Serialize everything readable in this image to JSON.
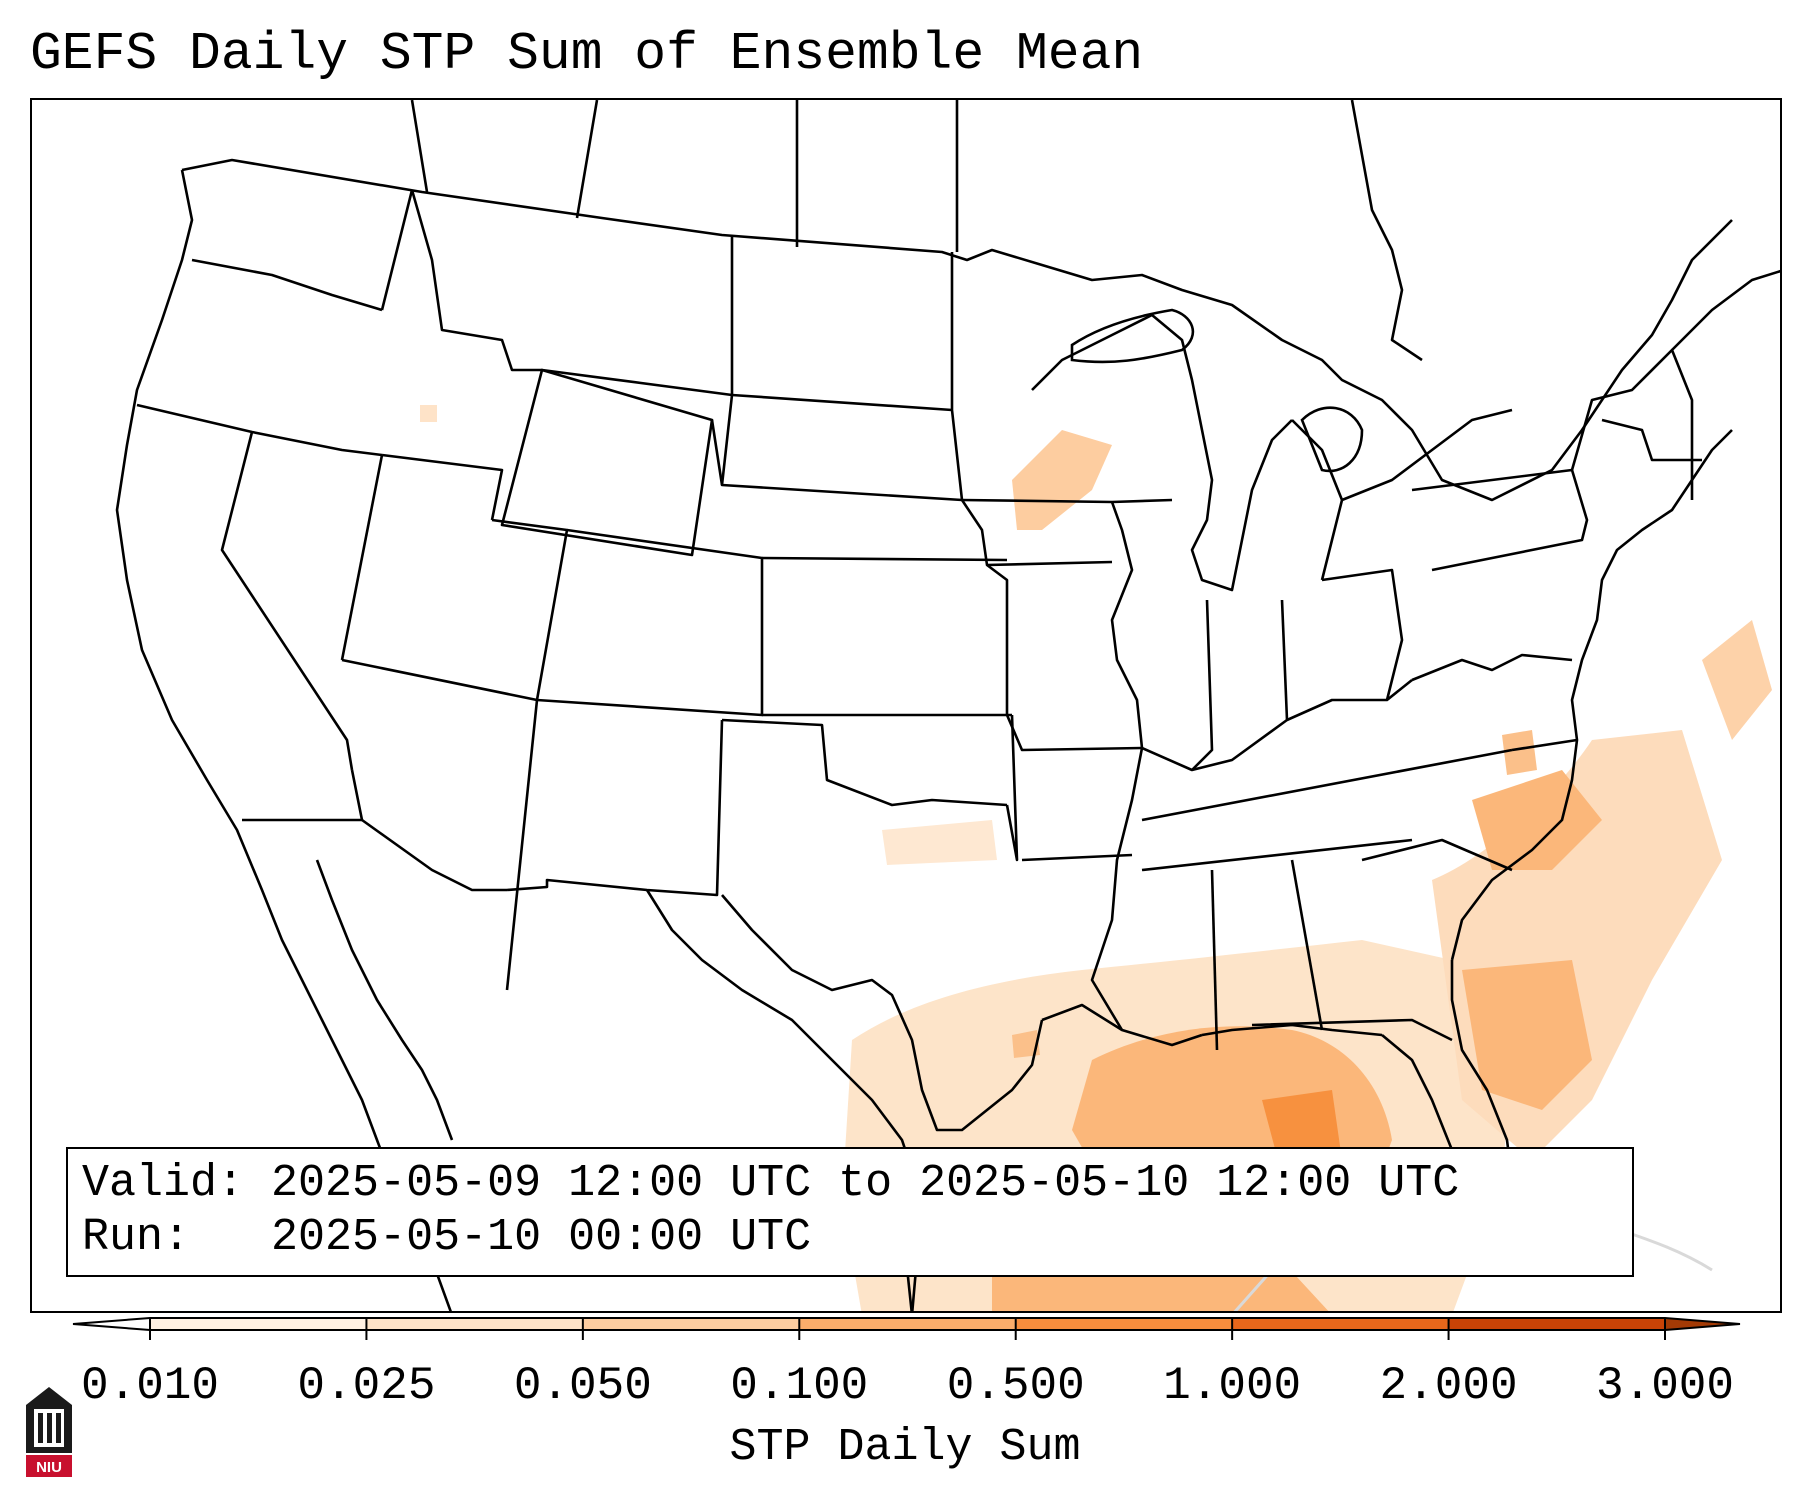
{
  "title": "GEFS Daily STP Sum of Ensemble Mean",
  "info": {
    "valid_prefix": "Valid:",
    "valid_text": "2025-05-09 12:00 UTC to 2025-05-10 12:00 UTC",
    "run_prefix": "Run:",
    "run_text": "2025-05-10 00:00 UTC"
  },
  "colorbar": {
    "label": "STP Daily Sum",
    "ticks": [
      "0.010",
      "0.025",
      "0.050",
      "0.100",
      "0.500",
      "1.000",
      "2.000",
      "3.000"
    ],
    "colors": [
      "#fff1e3",
      "#fee3c8",
      "#fdcda0",
      "#fbad6b",
      "#f78d3d",
      "#e8671b",
      "#c94306"
    ],
    "extend": "both"
  },
  "logo": {
    "text": "NIU",
    "color": "#c8102e"
  },
  "map": {
    "field": "STP daily sum",
    "region": "Continental United States",
    "colors": {
      "outline": "#000000",
      "outside_outline": "#d9d9d9"
    }
  }
}
